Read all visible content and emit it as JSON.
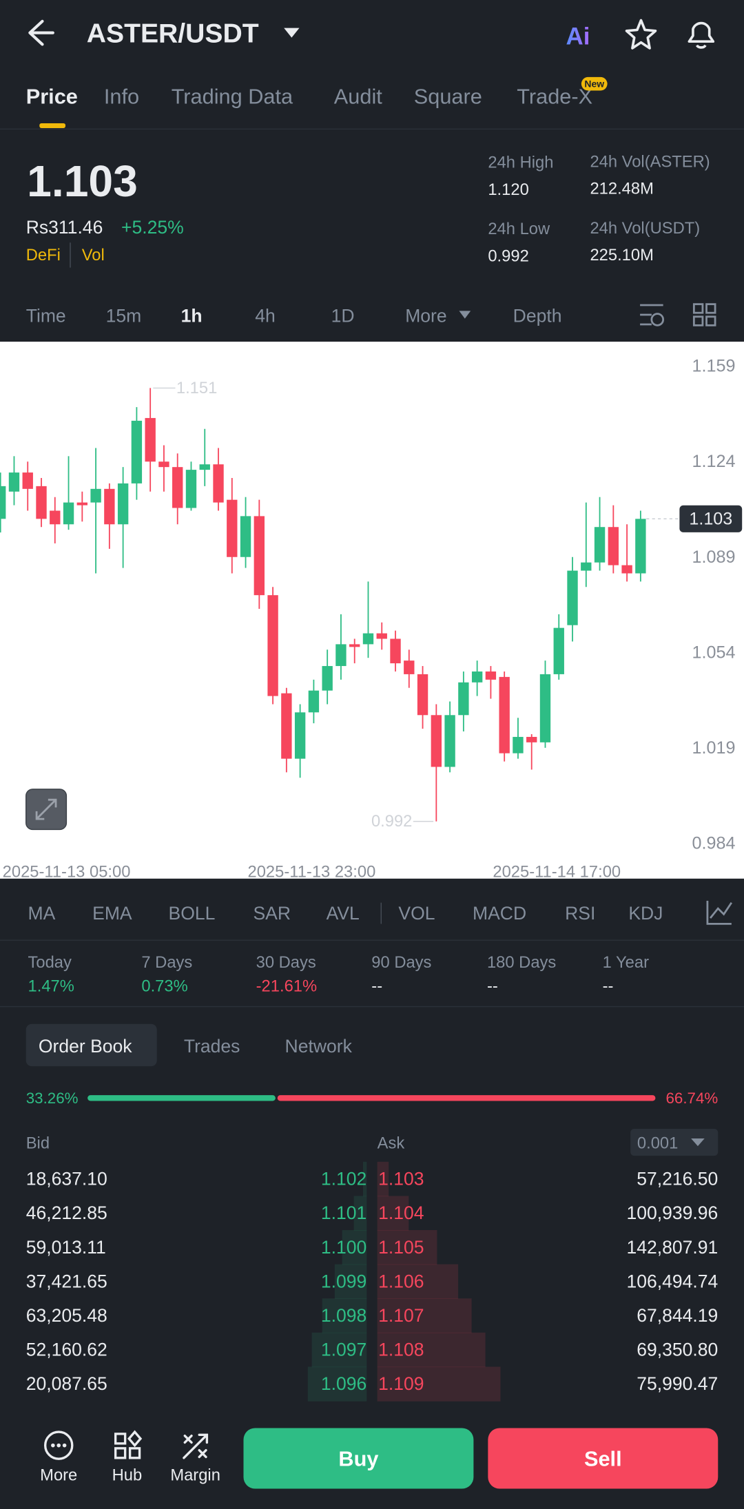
{
  "header": {
    "title": "ASTER/USDT",
    "ai": "Ai"
  },
  "tabs": [
    "Price",
    "Info",
    "Trading Data",
    "Audit",
    "Square",
    "Trade-X"
  ],
  "badge": "New",
  "ticker": {
    "price": "1.103",
    "fiat": "Rs311.46",
    "change": "+5.25%",
    "tags": [
      "DeFi",
      "Vol"
    ],
    "stats": [
      {
        "label": "24h High",
        "value": "1.120"
      },
      {
        "label": "24h Vol(ASTER)",
        "value": "212.48M"
      },
      {
        "label": "24h Low",
        "value": "0.992"
      },
      {
        "label": "24h Vol(USDT)",
        "value": "225.10M"
      }
    ]
  },
  "intervals": [
    "Time",
    "15m",
    "1h",
    "4h",
    "1D",
    "More",
    "Depth"
  ],
  "chart_data": {
    "type": "candlestick",
    "up_color": "#2ebd85",
    "down_color": "#f6465d",
    "x": [
      "2025-11-13 01:00",
      "2025-11-13 02:00",
      "2025-11-13 03:00",
      "2025-11-13 04:00",
      "2025-11-13 05:00",
      "2025-11-13 06:00",
      "2025-11-13 07:00",
      "2025-11-13 08:00",
      "2025-11-13 09:00",
      "2025-11-13 10:00",
      "2025-11-13 11:00",
      "2025-11-13 12:00",
      "2025-11-13 13:00",
      "2025-11-13 14:00",
      "2025-11-13 15:00",
      "2025-11-13 16:00",
      "2025-11-13 17:00",
      "2025-11-13 18:00",
      "2025-11-13 19:00",
      "2025-11-13 20:00",
      "2025-11-13 21:00",
      "2025-11-13 22:00",
      "2025-11-13 23:00",
      "2025-11-14 00:00",
      "2025-11-14 01:00",
      "2025-11-14 02:00",
      "2025-11-14 03:00",
      "2025-11-14 04:00",
      "2025-11-14 05:00",
      "2025-11-14 06:00",
      "2025-11-14 07:00",
      "2025-11-14 08:00",
      "2025-11-14 09:00",
      "2025-11-14 10:00",
      "2025-11-14 11:00",
      "2025-11-14 12:00",
      "2025-11-14 13:00",
      "2025-11-14 14:00",
      "2025-11-14 15:00",
      "2025-11-14 16:00",
      "2025-11-14 17:00",
      "2025-11-14 18:00",
      "2025-11-14 19:00",
      "2025-11-14 20:00",
      "2025-11-14 21:00",
      "2025-11-14 22:00",
      "2025-11-14 23:00",
      "2025-11-15 00:00"
    ],
    "open": [
      1.103,
      1.113,
      1.12,
      1.115,
      1.106,
      1.101,
      1.109,
      1.109,
      1.114,
      1.101,
      1.116,
      1.14,
      1.124,
      1.122,
      1.107,
      1.121,
      1.123,
      1.11,
      1.089,
      1.104,
      1.075,
      1.039,
      1.015,
      1.032,
      1.04,
      1.049,
      1.057,
      1.057,
      1.061,
      1.059,
      1.051,
      1.046,
      1.031,
      1.012,
      1.031,
      1.043,
      1.047,
      1.045,
      1.017,
      1.023,
      1.021,
      1.046,
      1.064,
      1.084,
      1.087,
      1.1,
      1.086,
      1.083
    ],
    "high": [
      1.12,
      1.126,
      1.124,
      1.118,
      1.111,
      1.126,
      1.113,
      1.129,
      1.116,
      1.122,
      1.144,
      1.151,
      1.13,
      1.127,
      1.124,
      1.136,
      1.129,
      1.118,
      1.111,
      1.11,
      1.078,
      1.041,
      1.035,
      1.044,
      1.055,
      1.068,
      1.059,
      1.08,
      1.065,
      1.062,
      1.055,
      1.049,
      1.035,
      1.036,
      1.047,
      1.051,
      1.049,
      1.047,
      1.03,
      1.024,
      1.051,
      1.068,
      1.089,
      1.109,
      1.111,
      1.108,
      1.101,
      1.106
    ],
    "low": [
      1.098,
      1.108,
      1.106,
      1.1,
      1.094,
      1.099,
      1.102,
      1.083,
      1.092,
      1.085,
      1.11,
      1.113,
      1.113,
      1.101,
      1.106,
      1.115,
      1.106,
      1.083,
      1.085,
      1.07,
      1.035,
      1.01,
      1.008,
      1.028,
      1.035,
      1.044,
      1.05,
      1.052,
      1.055,
      1.047,
      1.041,
      1.026,
      0.992,
      1.01,
      1.025,
      1.038,
      1.037,
      1.014,
      1.015,
      1.011,
      1.019,
      1.044,
      1.058,
      1.078,
      1.084,
      1.083,
      1.08,
      1.08
    ],
    "close": [
      1.115,
      1.12,
      1.114,
      1.103,
      1.101,
      1.109,
      1.108,
      1.114,
      1.101,
      1.116,
      1.139,
      1.124,
      1.122,
      1.107,
      1.121,
      1.123,
      1.109,
      1.089,
      1.104,
      1.075,
      1.038,
      1.015,
      1.032,
      1.04,
      1.049,
      1.057,
      1.056,
      1.061,
      1.059,
      1.05,
      1.046,
      1.031,
      1.012,
      1.031,
      1.043,
      1.047,
      1.044,
      1.017,
      1.023,
      1.021,
      1.046,
      1.063,
      1.084,
      1.087,
      1.1,
      1.086,
      1.083,
      1.103
    ],
    "ylim": [
      0.971,
      1.168
    ],
    "yticks": [
      1.159,
      1.124,
      1.089,
      1.054,
      1.019,
      0.984
    ],
    "xticks": [
      "2025-11-13 05:00",
      "2025-11-13 23:00",
      "2025-11-14 17:00"
    ],
    "high_label": 1.151,
    "low_label": 0.992,
    "last_price": 1.103
  },
  "indicators": [
    "MA",
    "EMA",
    "BOLL",
    "SAR",
    "AVL",
    "VOL",
    "MACD",
    "RSI",
    "KDJ"
  ],
  "performance": [
    {
      "label": "Today",
      "value": "1.47%"
    },
    {
      "label": "7 Days",
      "value": "0.73%"
    },
    {
      "label": "30 Days",
      "value": "-21.61%"
    },
    {
      "label": "90 Days",
      "value": "--"
    },
    {
      "label": "180 Days",
      "value": "--"
    },
    {
      "label": "1 Year",
      "value": "--"
    }
  ],
  "book_tabs": [
    "Order Book",
    "Trades",
    "Network"
  ],
  "ratio": {
    "bid": 33.26,
    "ask": 66.74,
    "bid_label": "33.26%",
    "ask_label": "66.74%"
  },
  "book": {
    "bid": "Bid",
    "ask": "Ask",
    "step": "0.001",
    "rows": [
      [
        "18,637.10",
        "1.102",
        "1.103",
        "57,216.50"
      ],
      [
        "46,212.85",
        "1.101",
        "1.104",
        "100,939.96"
      ],
      [
        "59,013.11",
        "1.100",
        "1.105",
        "142,807.91"
      ],
      [
        "37,421.65",
        "1.099",
        "1.106",
        "106,494.74"
      ],
      [
        "63,205.48",
        "1.098",
        "1.107",
        "67,844.19"
      ],
      [
        "52,160.62",
        "1.097",
        "1.108",
        "69,350.80"
      ],
      [
        "20,087.65",
        "1.096",
        "1.109",
        "75,990.47"
      ]
    ]
  },
  "nav": [
    "More",
    "Hub",
    "Margin"
  ],
  "actions": {
    "buy": "Buy",
    "sell": "Sell"
  }
}
